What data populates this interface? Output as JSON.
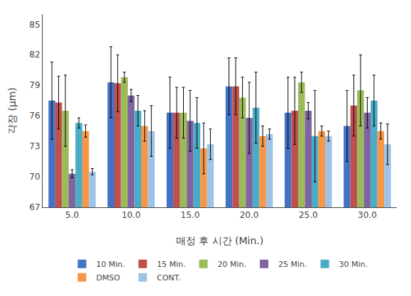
{
  "chart_data": {
    "type": "bar",
    "xlabel": "매정 후 시간 (Min.)",
    "ylabel": "각장 (μm)",
    "categories": [
      "5.0",
      "10.0",
      "15.0",
      "20.0",
      "25.0",
      "30.0"
    ],
    "series": [
      {
        "name": "10 Min.",
        "color": "#4472C4",
        "values": [
          77.5,
          79.3,
          76.3,
          78.9,
          76.3,
          75.0
        ],
        "errors": [
          3.8,
          3.5,
          3.5,
          2.8,
          3.5,
          3.5
        ]
      },
      {
        "name": "15 Min.",
        "color": "#C0504D",
        "values": [
          77.3,
          79.2,
          76.3,
          78.9,
          76.5,
          77.0
        ],
        "errors": [
          2.6,
          2.8,
          2.5,
          2.8,
          3.3,
          3.0
        ]
      },
      {
        "name": "20 Min.",
        "color": "#9BBB59",
        "values": [
          76.5,
          79.8,
          76.3,
          77.8,
          79.3,
          78.5
        ],
        "errors": [
          3.5,
          0.5,
          2.5,
          2.0,
          1.0,
          3.5
        ]
      },
      {
        "name": "25 Min.",
        "color": "#8064A2",
        "values": [
          70.3,
          78.0,
          75.5,
          75.8,
          76.5,
          76.3
        ],
        "errors": [
          0.4,
          0.6,
          3.0,
          3.5,
          0.8,
          1.5
        ]
      },
      {
        "name": "30 Min.",
        "color": "#4BACC6",
        "values": [
          75.3,
          76.5,
          75.3,
          76.8,
          74.0,
          77.5
        ],
        "errors": [
          0.5,
          1.5,
          2.5,
          3.5,
          4.5,
          2.5
        ]
      },
      {
        "name": "DMSO",
        "color": "#F79646",
        "values": [
          74.5,
          75.0,
          72.8,
          74.0,
          74.5,
          74.5
        ],
        "errors": [
          0.6,
          1.5,
          2.5,
          1.0,
          0.5,
          0.8
        ]
      },
      {
        "name": "CONT.",
        "color": "#9DC3E6",
        "values": [
          70.5,
          74.5,
          73.2,
          74.2,
          74.0,
          73.2
        ],
        "errors": [
          0.3,
          2.5,
          1.5,
          0.5,
          0.5,
          2.0
        ]
      }
    ],
    "ylim": [
      67,
      86
    ],
    "yticks": [
      67,
      70,
      73,
      76,
      79,
      82,
      85
    ],
    "grid": false,
    "legend": "bottom"
  }
}
